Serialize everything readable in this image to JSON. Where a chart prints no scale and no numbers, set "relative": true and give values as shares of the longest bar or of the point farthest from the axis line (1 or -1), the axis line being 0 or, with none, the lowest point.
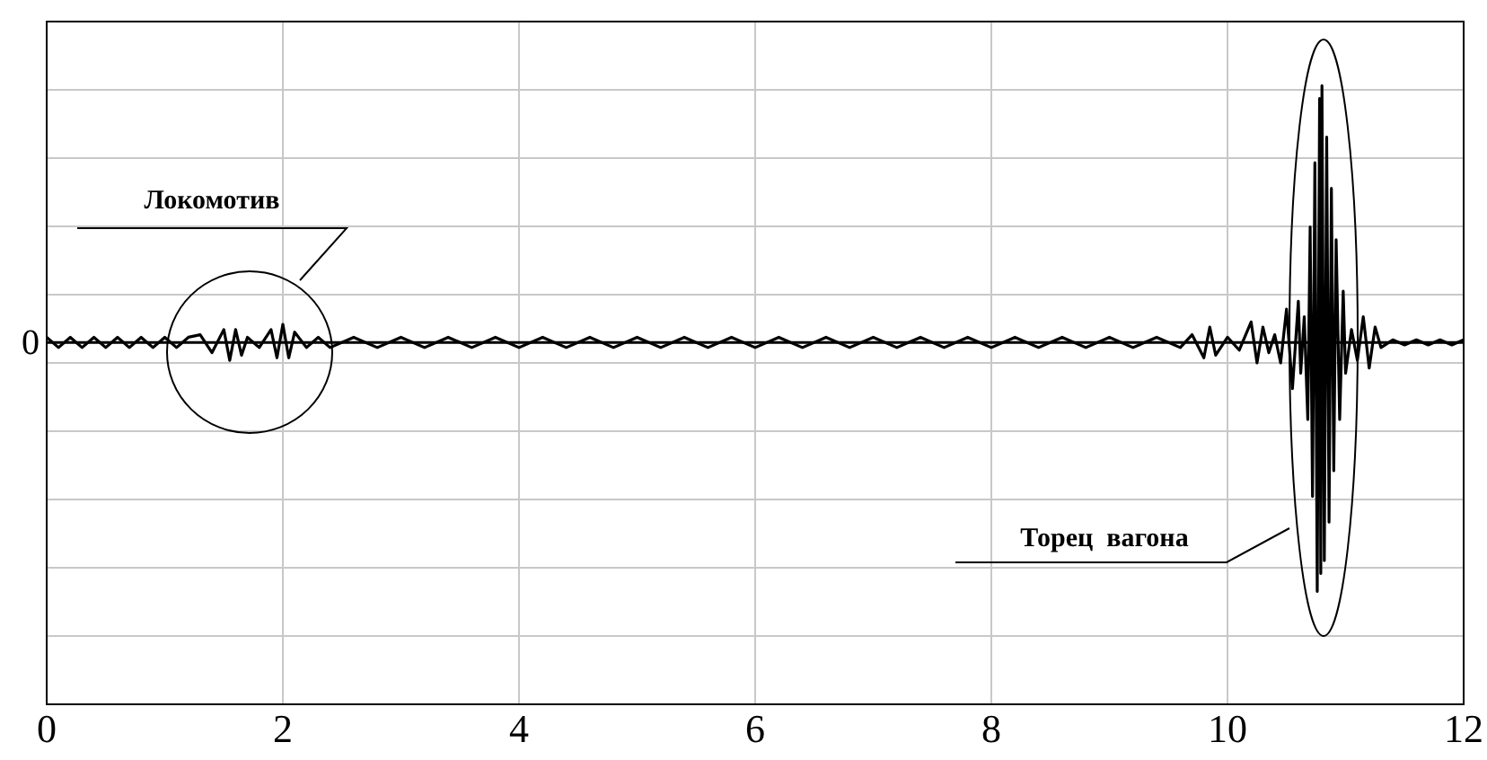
{
  "chart_data": {
    "type": "line",
    "relative": true,
    "grid": true,
    "legend": false,
    "marker": "none",
    "line_style": "solid",
    "xlim": [
      0,
      12
    ],
    "xticks": [
      0,
      2,
      4,
      6,
      8,
      10,
      12
    ],
    "annotations": [
      "0",
      "Локомотив",
      "Торец  вагона"
    ],
    "series": [
      {
        "color": "#000000",
        "x": [
          0,
          0.1,
          0.2,
          0.3,
          0.4,
          0.5,
          0.6,
          0.7,
          0.8,
          0.9,
          1.0,
          1.1,
          1.2,
          1.3,
          1.4,
          1.5,
          1.55,
          1.6,
          1.65,
          1.7,
          1.8,
          1.9,
          1.95,
          2.0,
          2.05,
          2.1,
          2.2,
          2.3,
          2.4,
          2.6,
          2.8,
          3.0,
          3.2,
          3.4,
          3.6,
          3.8,
          4.0,
          4.2,
          4.4,
          4.6,
          4.8,
          5.0,
          5.2,
          5.4,
          5.6,
          5.8,
          6.0,
          6.2,
          6.4,
          6.6,
          6.8,
          7.0,
          7.2,
          7.4,
          7.6,
          7.8,
          8.0,
          8.2,
          8.4,
          8.6,
          8.8,
          9.0,
          9.2,
          9.4,
          9.6,
          9.7,
          9.8,
          9.85,
          9.9,
          10.0,
          10.1,
          10.2,
          10.25,
          10.3,
          10.35,
          10.4,
          10.45,
          10.5,
          10.55,
          10.6,
          10.62,
          10.65,
          10.68,
          10.7,
          10.72,
          10.74,
          10.76,
          10.78,
          10.79,
          10.8,
          10.82,
          10.84,
          10.86,
          10.88,
          10.9,
          10.92,
          10.95,
          10.98,
          11.0,
          11.05,
          11.1,
          11.15,
          11.2,
          11.25,
          11.3,
          11.4,
          11.5,
          11.6,
          11.7,
          11.8,
          11.9,
          12.0
        ],
        "values": [
          0.02,
          -0.02,
          0.02,
          -0.02,
          0.02,
          -0.02,
          0.02,
          -0.02,
          0.02,
          -0.02,
          0.02,
          -0.02,
          0.02,
          0.03,
          -0.04,
          0.05,
          -0.07,
          0.05,
          -0.05,
          0.02,
          -0.02,
          0.05,
          -0.06,
          0.07,
          -0.06,
          0.04,
          -0.02,
          0.02,
          -0.02,
          0.02,
          -0.02,
          0.02,
          -0.02,
          0.02,
          -0.02,
          0.02,
          -0.02,
          0.02,
          -0.02,
          0.02,
          -0.02,
          0.02,
          -0.02,
          0.02,
          -0.02,
          0.02,
          -0.02,
          0.02,
          -0.02,
          0.02,
          -0.02,
          0.02,
          -0.02,
          0.02,
          -0.02,
          0.02,
          -0.02,
          0.02,
          -0.02,
          0.02,
          -0.02,
          0.02,
          -0.02,
          0.02,
          -0.02,
          0.03,
          -0.06,
          0.06,
          -0.05,
          0.02,
          -0.03,
          0.08,
          -0.08,
          0.06,
          -0.04,
          0.03,
          -0.08,
          0.13,
          -0.18,
          0.16,
          -0.12,
          0.1,
          -0.3,
          0.45,
          -0.6,
          0.7,
          -0.97,
          0.95,
          -0.9,
          1.0,
          -0.85,
          0.8,
          -0.7,
          0.6,
          -0.5,
          0.4,
          -0.3,
          0.2,
          -0.12,
          0.05,
          -0.07,
          0.1,
          -0.1,
          0.06,
          -0.02,
          0.01,
          -0.01,
          0.01,
          -0.01,
          0.01,
          -0.01,
          0.01
        ]
      }
    ]
  }
}
